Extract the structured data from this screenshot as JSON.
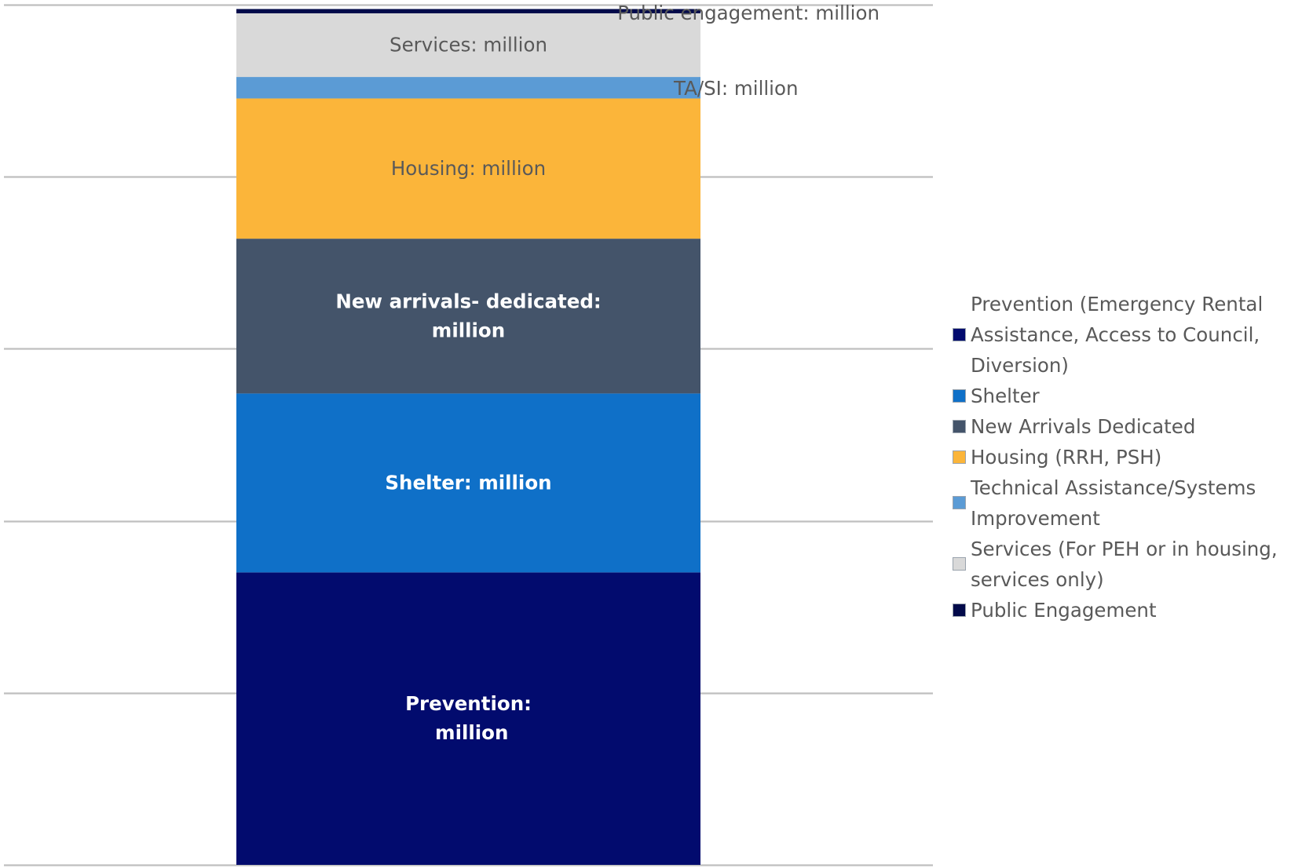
{
  "chart_data": {
    "type": "bar",
    "stacked": true,
    "categories": [
      ""
    ],
    "ylim": [
      0,
      100
    ],
    "grid": true,
    "axis_labels_visible": false,
    "legend_position": "right",
    "series": [
      {
        "name": "Prevention (Emergency Rental Assistance, Access to Council, Diversion)",
        "values": [
          34.0
        ],
        "color": "#020b6e",
        "label": "Prevention:\n million",
        "label_color": "#ffffff",
        "label_bold": true
      },
      {
        "name": "Shelter",
        "values": [
          20.8
        ],
        "color": "#0f70c8",
        "label": "Shelter:  million",
        "label_color": "#ffffff",
        "label_bold": true
      },
      {
        "name": "New Arrivals Dedicated",
        "values": [
          18.0
        ],
        "color": "#44546a",
        "label": "New arrivals- dedicated:\nmillion",
        "label_color": "#ffffff",
        "label_bold": true
      },
      {
        "name": "Housing (RRH, PSH)",
        "values": [
          16.3
        ],
        "color": "#fbb53a",
        "label": "Housing:  million",
        "label_color": "#595959",
        "label_bold": false
      },
      {
        "name": "Technical Assistance/Systems Improvement",
        "values": [
          2.5
        ],
        "color": "#5b9bd5",
        "label": "TA/SI:  million",
        "label_color": "#595959",
        "label_bold": false,
        "label_outside": true
      },
      {
        "name": "Services (For PEH or in housing, services only)",
        "values": [
          7.4
        ],
        "color": "#d9d9d9",
        "label": "Services:  million",
        "label_color": "#595959",
        "label_bold": false
      },
      {
        "name": "Public Engagement",
        "values": [
          0.5
        ],
        "color": "#020a4a",
        "label": "Public engagement:  million",
        "label_color": "#595959",
        "label_bold": false,
        "label_outside": true
      }
    ]
  }
}
